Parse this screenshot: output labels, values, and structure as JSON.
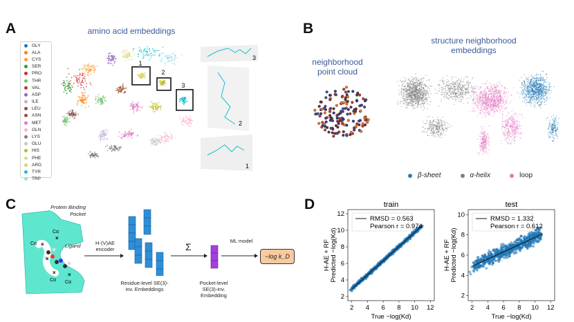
{
  "panel_a": {
    "label": "A",
    "title": "amino acid embeddings",
    "legend": [
      {
        "name": "GLY",
        "color": "#1f77b4"
      },
      {
        "name": "ALA",
        "color": "#ff7f0e"
      },
      {
        "name": "CYS",
        "color": "#ff9a2e"
      },
      {
        "name": "SER",
        "color": "#2ca02c"
      },
      {
        "name": "PRO",
        "color": "#d62728"
      },
      {
        "name": "THR",
        "color": "#74c476"
      },
      {
        "name": "VAL",
        "color": "#c0392b"
      },
      {
        "name": "ASP",
        "color": "#9467bd"
      },
      {
        "name": "ILE",
        "color": "#c5b0d5"
      },
      {
        "name": "LEU",
        "color": "#8c564b"
      },
      {
        "name": "ASN",
        "color": "#a0522d"
      },
      {
        "name": "MET",
        "color": "#e377c2"
      },
      {
        "name": "GLN",
        "color": "#f7b6d2"
      },
      {
        "name": "LYS",
        "color": "#7f7f7f"
      },
      {
        "name": "GLU",
        "color": "#c7c7c7"
      },
      {
        "name": "HIS",
        "color": "#bcbd22"
      },
      {
        "name": "PHE",
        "color": "#dbdb8d"
      },
      {
        "name": "ARG",
        "color": "#d4d46a"
      },
      {
        "name": "TYR",
        "color": "#17becf"
      },
      {
        "name": "TRP",
        "color": "#9edae5"
      }
    ],
    "inset_labels": [
      "1",
      "2",
      "3"
    ]
  },
  "panel_b": {
    "label": "B",
    "title": "structure neighborhood embeddings",
    "point_cloud_title": "neighborhood point cloud",
    "legend": [
      {
        "name": "β-sheet",
        "color": "#2c7fb8"
      },
      {
        "name": "α-helix",
        "color": "#808080"
      },
      {
        "name": "loop",
        "color": "#e377c2"
      }
    ]
  },
  "panel_c": {
    "label": "C",
    "pocket_title": "Protein Binding Pocket",
    "ligand": "Ligand",
    "calpha": "Cα",
    "encoder": "H-(V)AE encoder",
    "sum_symbol": "Σ",
    "residue_caption": "Residue-level SE(3)-inv. Embeddings",
    "pocket_caption": "Pocket-level SE(3)-inv. Embedding",
    "model": "ML model",
    "output": "−log k_D"
  },
  "chart_data": [
    {
      "type": "scatter",
      "title": "train",
      "xlabel": "True −log(Kd)",
      "ylabel": "H-AE + RF Predicted −log(Kd)",
      "xlim": [
        1.5,
        12.5
      ],
      "ylim": [
        1.5,
        12.5
      ],
      "xticks": [
        2,
        4,
        6,
        8,
        10,
        12
      ],
      "yticks": [
        2,
        4,
        6,
        8,
        10,
        12
      ],
      "rmsd": "RMSD = 0.563",
      "pearson": "Pearson r = 0.974",
      "fit_line": {
        "x": [
          2,
          11
        ],
        "y": [
          2.9,
          10.6
        ]
      },
      "points_color": "#1f77b4"
    },
    {
      "type": "scatter",
      "title": "test",
      "xlabel": "True −log(Kd)",
      "ylabel": "H-AE + RF Predicted −log(Kd)",
      "xlim": [
        1.5,
        12.5
      ],
      "ylim": [
        1.5,
        10.5
      ],
      "xticks": [
        2,
        4,
        6,
        8,
        10,
        12
      ],
      "yticks": [
        2,
        4,
        6,
        8,
        10
      ],
      "rmsd": "RMSD = 1.332",
      "pearson": "Pearson r = 0.612",
      "fit_line": {
        "x": [
          2,
          11
        ],
        "y": [
          4.9,
          8.1
        ]
      },
      "points_color": "#1f77b4"
    }
  ],
  "panel_d_label": "D"
}
